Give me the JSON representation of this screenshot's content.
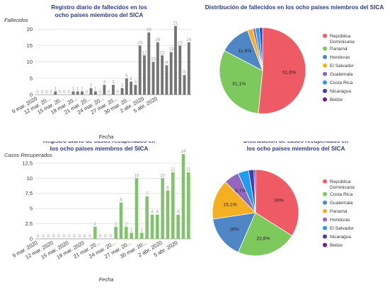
{
  "chart_data": [
    {
      "type": "bar",
      "title": "Registro diario de fallecidos en los ocho países miembros del SICA",
      "xlabel": "Fecha",
      "ylabel": "Fallecidos",
      "ylim": [
        0,
        22
      ],
      "yticks": [
        0,
        5,
        10,
        15,
        20
      ],
      "grid": true,
      "color": "#757575",
      "tick_labels": [
        "9 mar. 2020",
        "12 mar. 20...",
        "15 mar. 20...",
        "18 mar. 20...",
        "21 mar. 20...",
        "24 mar. 20...",
        "27 mar. 20...",
        "30 mar. 20...",
        "2 abr. 2020",
        "5 abr. 2020"
      ],
      "tick_every": 3,
      "values": [
        0,
        0,
        0,
        0,
        1,
        0,
        0,
        0,
        1,
        1,
        1,
        0,
        2,
        1,
        0,
        3,
        0,
        3,
        0,
        2,
        5,
        4,
        3,
        15,
        12,
        19,
        10,
        16,
        12,
        9,
        13,
        21,
        15,
        6,
        16
      ],
      "labels": [
        "0",
        "0",
        "0",
        "0",
        "1",
        "0",
        "0",
        "0",
        "1",
        "1",
        "1",
        "0",
        "2",
        "1",
        "0",
        "3",
        "0",
        "3",
        "0",
        "2",
        "5",
        "4",
        "3",
        "15",
        "12",
        "19",
        "10",
        "16",
        "12",
        "9",
        "13",
        "21",
        "15",
        "6",
        "16"
      ]
    },
    {
      "type": "pie",
      "title": "Distribución de fallecidos en los ocho países miembros del SICA",
      "slices": [
        {
          "name": "República Dominicana",
          "value": 51.6,
          "label": "51,6%",
          "color": "#ef5b64"
        },
        {
          "name": "Panamá",
          "value": 31.1,
          "label": "31,1%",
          "color": "#7dc95e"
        },
        {
          "name": "Honduras",
          "value": 11.6,
          "label": "11,6%",
          "color": "#4f86c6"
        },
        {
          "name": "El Salvador",
          "value": 2.0,
          "label": "",
          "color": "#f5b021"
        },
        {
          "name": "Guatemala",
          "value": 1.0,
          "label": "",
          "color": "#9467bd"
        },
        {
          "name": "Costa Rica",
          "value": 1.5,
          "label": "",
          "color": "#1e9cef"
        },
        {
          "name": "Nicaragua",
          "value": 1.2,
          "label": "",
          "color": "#3a3eb4"
        },
        {
          "name": "Belize",
          "value": 0.0,
          "label": "",
          "color": "#6a1b9a"
        }
      ],
      "legend_position": "right"
    },
    {
      "type": "bar",
      "title": "Registro diario de casos recuperados en los ocho países miembros del SICA",
      "xlabel": "Fecha",
      "ylabel": "Casos Recuperados",
      "ylim": [
        0,
        14
      ],
      "yticks": [
        0,
        2.5,
        5,
        7.5,
        10,
        12.5
      ],
      "ytick_labels": [
        "0",
        "2,5",
        "5",
        "7,5",
        "10",
        "12,5"
      ],
      "grid": true,
      "color": "#7fc36a",
      "tick_labels": [
        "9 mar. 2020",
        "12 mar. 2020",
        "15 mar. 2020",
        "18 mar. 2020",
        "21 mar. 20...",
        "24 mar. 20...",
        "27 mar. 20...",
        "30 mar. 20...",
        "2 abr. 2020",
        "5 abr. 2020"
      ],
      "tick_every": 3,
      "values": [
        0,
        0,
        0,
        0,
        0,
        0,
        0,
        0,
        0,
        0,
        0,
        2,
        0,
        0,
        0,
        2,
        6,
        2,
        1,
        10,
        1,
        7,
        4,
        4,
        10,
        8,
        11,
        4,
        14,
        11
      ],
      "labels": [
        "0",
        "0",
        "0",
        "0",
        "0",
        "0",
        "0",
        "0",
        "0",
        "0",
        "0",
        "2",
        "0",
        "0",
        "0",
        "2",
        "6",
        "2",
        "1",
        "10",
        "1",
        "7",
        "4",
        "4",
        "10",
        "8",
        "11",
        "4",
        "14",
        "11"
      ]
    },
    {
      "type": "pie",
      "title": "Distribución de casos recuperados en los ocho países miembros del SICA",
      "slices": [
        {
          "name": "República Dominicana",
          "value": 34.0,
          "label": "34%",
          "color": "#ef5b64"
        },
        {
          "name": "Costa Rica",
          "value": 22.6,
          "label": "22,6%",
          "color": "#7dc95e"
        },
        {
          "name": "Guatemala",
          "value": 16.0,
          "label": "16%",
          "color": "#4f86c6"
        },
        {
          "name": "Panamá",
          "value": 15.1,
          "label": "15,1%",
          "color": "#f5b021"
        },
        {
          "name": "Honduras",
          "value": 5.7,
          "label": "5,7%",
          "color": "#9467bd"
        },
        {
          "name": "El Salvador",
          "value": 4.0,
          "label": "",
          "color": "#1e9cef"
        },
        {
          "name": "Nicaragua",
          "value": 2.0,
          "label": "",
          "color": "#3a3eb4"
        },
        {
          "name": "Belize",
          "value": 0.6,
          "label": "",
          "color": "#6a1b9a"
        }
      ],
      "legend_position": "right"
    }
  ]
}
